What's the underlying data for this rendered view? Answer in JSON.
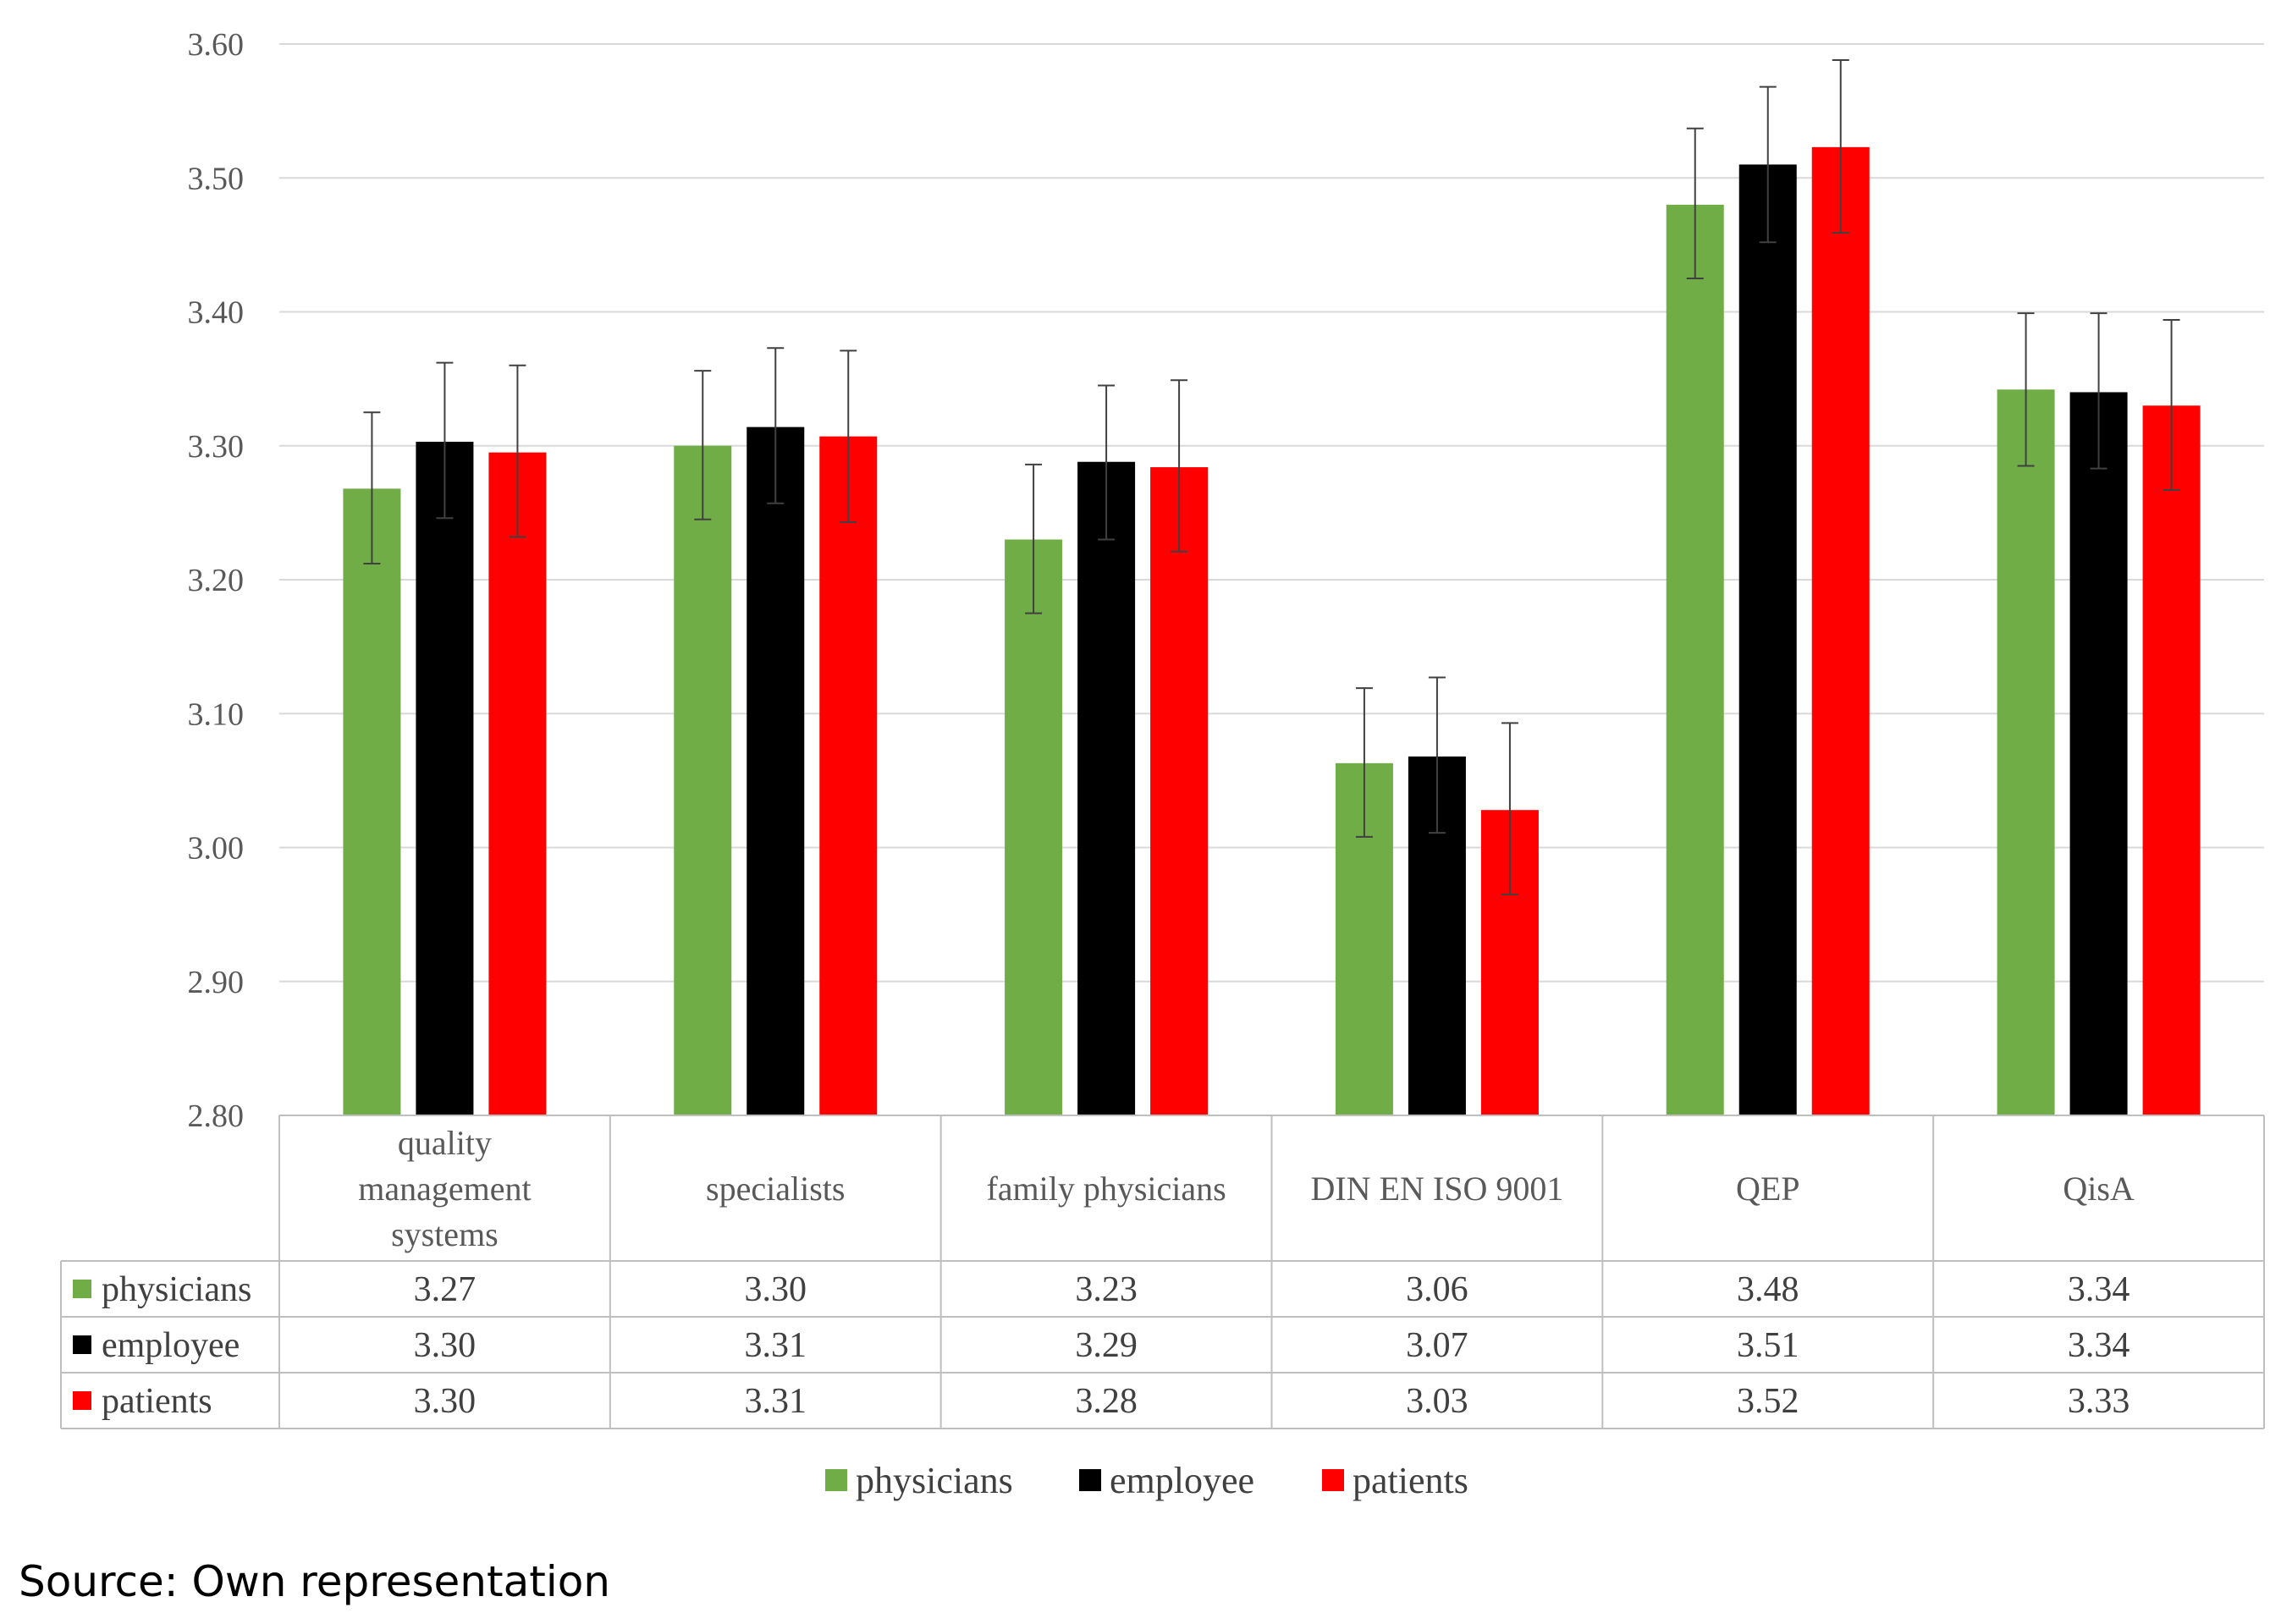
{
  "chart_data": {
    "type": "bar",
    "categories": [
      [
        "quality",
        "management",
        "systems"
      ],
      [
        "specialists"
      ],
      [
        "family physicians"
      ],
      [
        "DIN EN ISO 9001"
      ],
      [
        "QEP"
      ],
      [
        "QisA"
      ]
    ],
    "series": [
      {
        "name": "physicians",
        "color": "#70AD47",
        "values": [
          3.268,
          3.3,
          3.23,
          3.063,
          3.48,
          3.342
        ],
        "error_low": [
          3.212,
          3.245,
          3.175,
          3.008,
          3.425,
          3.285
        ],
        "error_high": [
          3.325,
          3.356,
          3.286,
          3.119,
          3.537,
          3.399
        ],
        "table_values": [
          "3.27",
          "3.30",
          "3.23",
          "3.06",
          "3.48",
          "3.34"
        ]
      },
      {
        "name": "employee",
        "color": "#000000",
        "values": [
          3.303,
          3.314,
          3.288,
          3.068,
          3.51,
          3.34
        ],
        "error_low": [
          3.246,
          3.257,
          3.23,
          3.011,
          3.452,
          3.283
        ],
        "error_high": [
          3.362,
          3.373,
          3.345,
          3.127,
          3.568,
          3.399
        ],
        "table_values": [
          "3.30",
          "3.31",
          "3.29",
          "3.07",
          "3.51",
          "3.34"
        ]
      },
      {
        "name": "patients",
        "color": "#FF0000",
        "values": [
          3.295,
          3.307,
          3.284,
          3.028,
          3.523,
          3.33
        ],
        "error_low": [
          3.232,
          3.243,
          3.221,
          2.965,
          3.459,
          3.267
        ],
        "error_high": [
          3.36,
          3.371,
          3.349,
          3.093,
          3.588,
          3.394
        ],
        "table_values": [
          "3.30",
          "3.31",
          "3.28",
          "3.03",
          "3.52",
          "3.33"
        ]
      }
    ],
    "ylim": [
      2.8,
      3.6
    ],
    "yticks": [
      "3.60",
      "3.50",
      "3.40",
      "3.30",
      "3.20",
      "3.10",
      "3.00",
      "2.90",
      "2.80"
    ],
    "grid": true,
    "legend_position": "bottom",
    "data_table": true
  },
  "source_note": "Source: Own representation"
}
